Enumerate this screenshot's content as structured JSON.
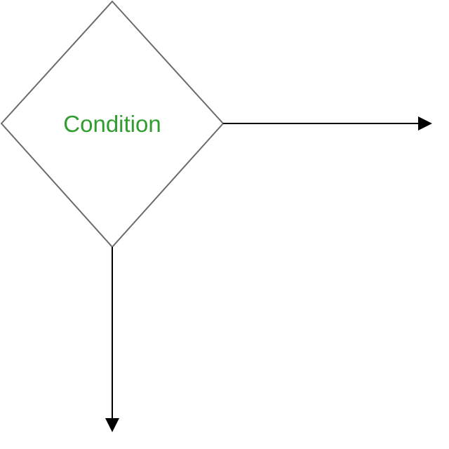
{
  "diagram": {
    "type": "flowchart-decision",
    "decision": {
      "label": "Condition",
      "label_color": "#2f9e2f",
      "border_color": "#6b6b6b"
    },
    "connector_color": "#000000",
    "arrows": [
      {
        "name": "right-arrow",
        "direction": "right"
      },
      {
        "name": "down-arrow",
        "direction": "down"
      }
    ]
  }
}
